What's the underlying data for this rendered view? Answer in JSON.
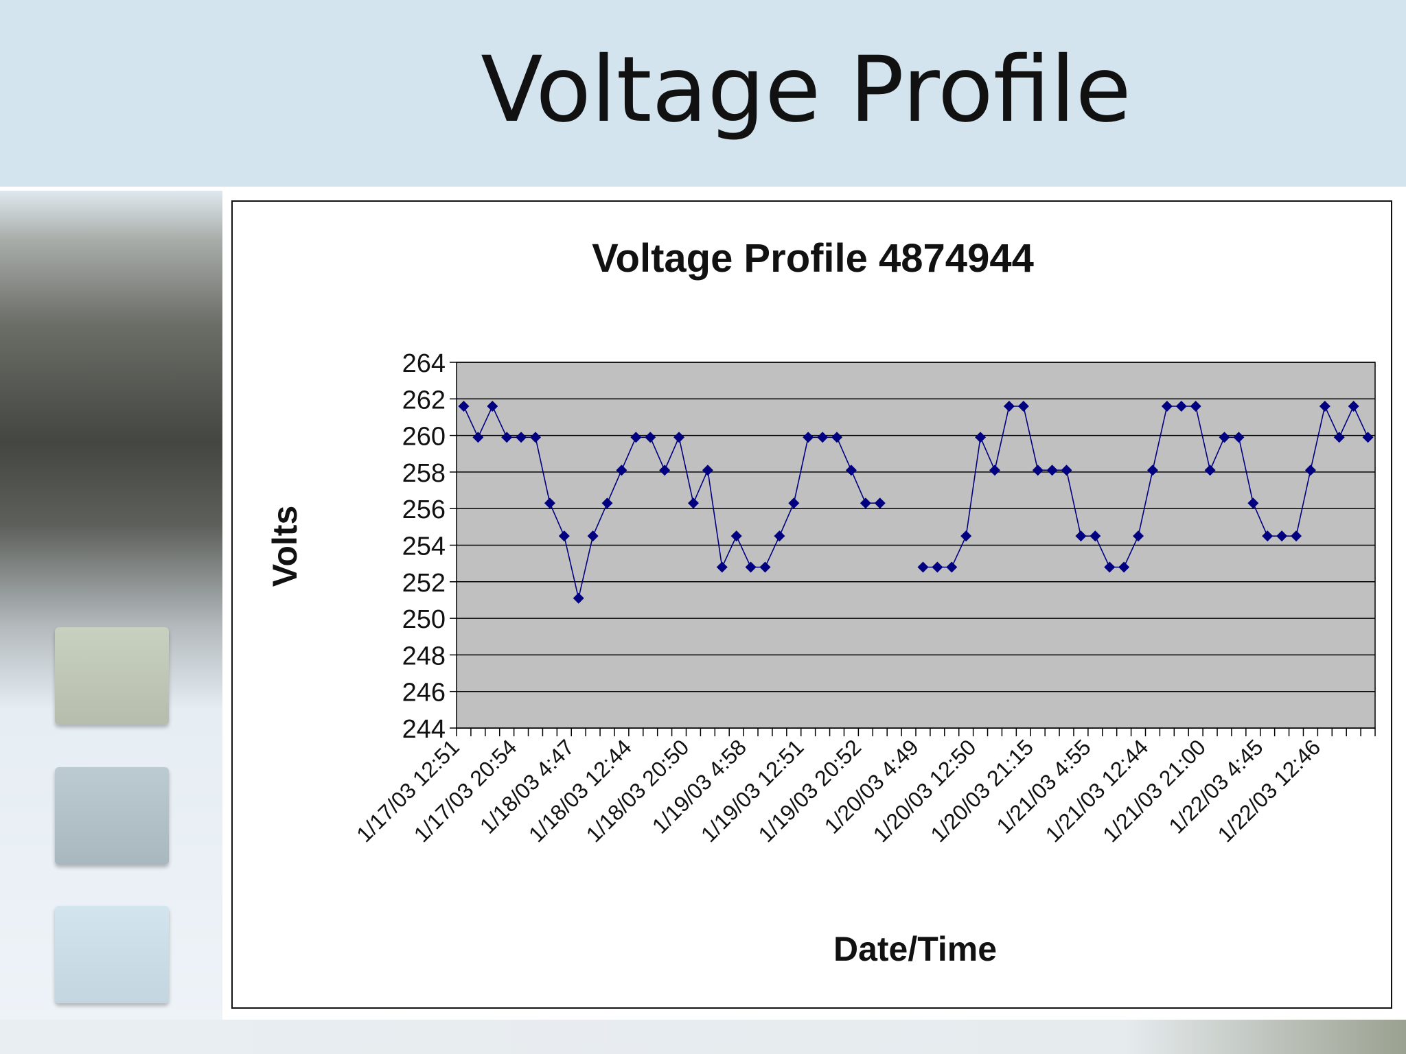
{
  "slide": {
    "title": "Voltage Profile"
  },
  "colors": {
    "header_bg": "#d3e4ef",
    "plot_bg": "#c0c0c0",
    "series": "#000080"
  },
  "chart_data": {
    "type": "line",
    "title": "Voltage Profile 4874944",
    "xlabel": "Date/Time",
    "ylabel": "Volts",
    "ylim": [
      244,
      264
    ],
    "y_ticks": [
      264,
      262,
      260,
      258,
      256,
      254,
      252,
      250,
      248,
      246,
      244
    ],
    "grid": true,
    "legend": "none",
    "x_tick_labels": [
      "1/17/03 12:51",
      "1/17/03 20:54",
      "1/18/03 4:47",
      "1/18/03 12:44",
      "1/18/03 20:50",
      "1/19/03 4:58",
      "1/19/03 12:51",
      "1/19/03 20:52",
      "1/20/03 4:49",
      "1/20/03 12:50",
      "1/20/03 21:15",
      "1/21/03 4:55",
      "1/21/03 12:44",
      "1/21/03 21:00",
      "1/22/03 4:45",
      "1/22/03 12:46"
    ],
    "x_tick_label_every": 4,
    "series": [
      {
        "values": [
          261.6,
          259.9,
          261.6,
          259.9,
          259.9,
          259.9,
          256.3,
          254.5,
          251.1,
          254.5,
          256.3,
          258.1,
          259.9,
          259.9,
          258.1,
          259.9,
          256.3,
          258.1,
          252.8,
          254.5,
          252.8,
          252.8,
          254.5,
          256.3,
          259.9,
          259.9,
          259.9,
          258.1,
          256.3,
          256.3,
          null,
          null,
          252.8,
          252.8,
          252.8,
          254.5,
          259.9,
          258.1,
          261.6,
          261.6,
          258.1,
          258.1,
          258.1,
          254.5,
          254.5,
          252.8,
          252.8,
          254.5,
          258.1,
          261.6,
          261.6,
          261.6,
          258.1,
          259.9,
          259.9,
          256.3,
          254.5,
          254.5,
          254.5,
          258.1,
          261.6,
          259.9,
          261.6,
          259.9
        ]
      }
    ]
  }
}
